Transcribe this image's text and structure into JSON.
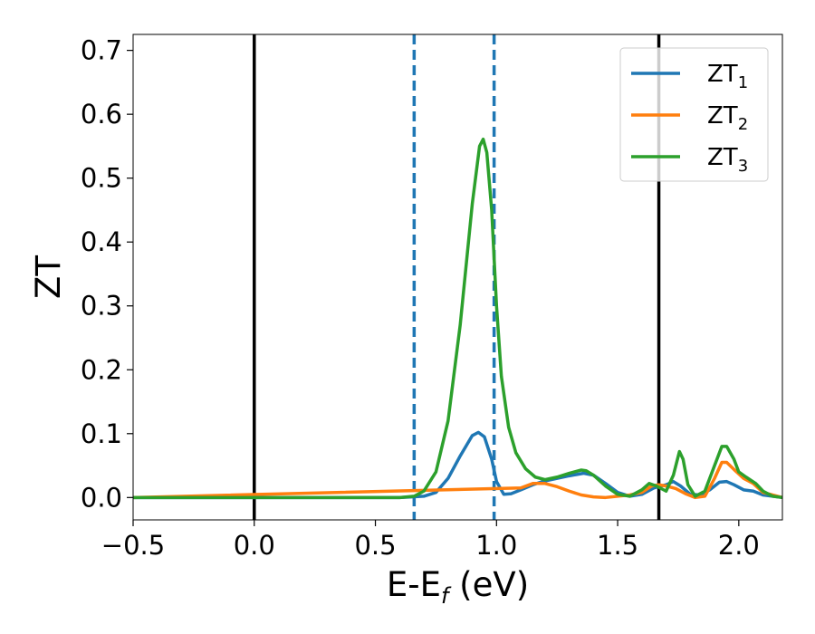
{
  "chart_data": {
    "type": "line",
    "xlabel": "E-E",
    "xlabel_sub": "f",
    "xlabel_unit": " (eV)",
    "ylabel": "ZT",
    "xlim": [
      -0.5,
      2.18
    ],
    "ylim": [
      -0.035,
      0.725
    ],
    "xticks": [
      -0.5,
      0.0,
      0.5,
      1.0,
      1.5,
      2.0
    ],
    "xtick_labels": [
      "−0.5",
      "0.0",
      "0.5",
      "1.0",
      "1.5",
      "2.0"
    ],
    "yticks": [
      0.0,
      0.1,
      0.2,
      0.3,
      0.4,
      0.5,
      0.6,
      0.7
    ],
    "ytick_labels": [
      "0.0",
      "0.1",
      "0.2",
      "0.3",
      "0.4",
      "0.5",
      "0.6",
      "0.7"
    ],
    "grid": false,
    "legend_position": "top-right",
    "vlines": [
      {
        "x": 0.0,
        "style": "solid",
        "color": "#000000"
      },
      {
        "x": 1.67,
        "style": "solid",
        "color": "#000000"
      },
      {
        "x": 0.66,
        "style": "dashed",
        "color": "#1f77b4"
      },
      {
        "x": 0.99,
        "style": "dashed",
        "color": "#1f77b4"
      }
    ],
    "series": [
      {
        "name": "ZT",
        "name_sub": "1",
        "color": "#1f77b4",
        "points": [
          [
            -0.5,
            0
          ],
          [
            0.6,
            0
          ],
          [
            0.7,
            0.002
          ],
          [
            0.75,
            0.008
          ],
          [
            0.8,
            0.03
          ],
          [
            0.85,
            0.065
          ],
          [
            0.9,
            0.097
          ],
          [
            0.925,
            0.102
          ],
          [
            0.95,
            0.095
          ],
          [
            0.98,
            0.06
          ],
          [
            1.0,
            0.025
          ],
          [
            1.03,
            0.005
          ],
          [
            1.06,
            0.006
          ],
          [
            1.1,
            0.012
          ],
          [
            1.15,
            0.02
          ],
          [
            1.2,
            0.026
          ],
          [
            1.25,
            0.03
          ],
          [
            1.3,
            0.034
          ],
          [
            1.36,
            0.038
          ],
          [
            1.4,
            0.035
          ],
          [
            1.45,
            0.022
          ],
          [
            1.5,
            0.008
          ],
          [
            1.55,
            0.002
          ],
          [
            1.6,
            0.005
          ],
          [
            1.65,
            0.015
          ],
          [
            1.7,
            0.02
          ],
          [
            1.73,
            0.025
          ],
          [
            1.76,
            0.018
          ],
          [
            1.8,
            0.005
          ],
          [
            1.84,
            0.004
          ],
          [
            1.88,
            0.012
          ],
          [
            1.92,
            0.024
          ],
          [
            1.95,
            0.025
          ],
          [
            1.98,
            0.02
          ],
          [
            2.02,
            0.012
          ],
          [
            2.06,
            0.01
          ],
          [
            2.1,
            0.004
          ],
          [
            2.18,
            0.0
          ]
        ]
      },
      {
        "name": "ZT",
        "name_sub": "2",
        "color": "#ff7f0e",
        "points": [
          [
            -0.5,
            0
          ],
          [
            1.1,
            0.015
          ],
          [
            1.15,
            0.022
          ],
          [
            1.2,
            0.022
          ],
          [
            1.25,
            0.017
          ],
          [
            1.3,
            0.01
          ],
          [
            1.35,
            0.004
          ],
          [
            1.4,
            0.001
          ],
          [
            1.45,
            0.0
          ],
          [
            1.5,
            0.002
          ],
          [
            1.55,
            0.004
          ],
          [
            1.6,
            0.008
          ],
          [
            1.64,
            0.018
          ],
          [
            1.67,
            0.02
          ],
          [
            1.7,
            0.018
          ],
          [
            1.74,
            0.014
          ],
          [
            1.78,
            0.006
          ],
          [
            1.82,
            0.0
          ],
          [
            1.86,
            0.002
          ],
          [
            1.9,
            0.03
          ],
          [
            1.93,
            0.055
          ],
          [
            1.95,
            0.055
          ],
          [
            1.98,
            0.044
          ],
          [
            2.02,
            0.03
          ],
          [
            2.06,
            0.022
          ],
          [
            2.1,
            0.008
          ],
          [
            2.18,
            0.0
          ]
        ]
      },
      {
        "name": "ZT",
        "name_sub": "3",
        "color": "#2ca02c",
        "points": [
          [
            -0.5,
            0
          ],
          [
            0.6,
            0
          ],
          [
            0.66,
            0.002
          ],
          [
            0.7,
            0.01
          ],
          [
            0.75,
            0.04
          ],
          [
            0.8,
            0.12
          ],
          [
            0.85,
            0.27
          ],
          [
            0.9,
            0.46
          ],
          [
            0.93,
            0.55
          ],
          [
            0.945,
            0.561
          ],
          [
            0.96,
            0.54
          ],
          [
            0.98,
            0.45
          ],
          [
            1.0,
            0.3
          ],
          [
            1.02,
            0.19
          ],
          [
            1.05,
            0.11
          ],
          [
            1.08,
            0.07
          ],
          [
            1.12,
            0.045
          ],
          [
            1.16,
            0.032
          ],
          [
            1.2,
            0.028
          ],
          [
            1.25,
            0.032
          ],
          [
            1.3,
            0.038
          ],
          [
            1.35,
            0.043
          ],
          [
            1.37,
            0.042
          ],
          [
            1.4,
            0.035
          ],
          [
            1.45,
            0.018
          ],
          [
            1.5,
            0.005
          ],
          [
            1.55,
            0.002
          ],
          [
            1.6,
            0.012
          ],
          [
            1.63,
            0.022
          ],
          [
            1.66,
            0.018
          ],
          [
            1.7,
            0.01
          ],
          [
            1.73,
            0.035
          ],
          [
            1.755,
            0.072
          ],
          [
            1.77,
            0.06
          ],
          [
            1.79,
            0.02
          ],
          [
            1.82,
            0.002
          ],
          [
            1.86,
            0.01
          ],
          [
            1.9,
            0.05
          ],
          [
            1.93,
            0.08
          ],
          [
            1.95,
            0.08
          ],
          [
            1.98,
            0.06
          ],
          [
            2.0,
            0.04
          ],
          [
            2.03,
            0.032
          ],
          [
            2.07,
            0.022
          ],
          [
            2.1,
            0.01
          ],
          [
            2.14,
            0.002
          ],
          [
            2.18,
            0.0
          ]
        ]
      }
    ]
  }
}
